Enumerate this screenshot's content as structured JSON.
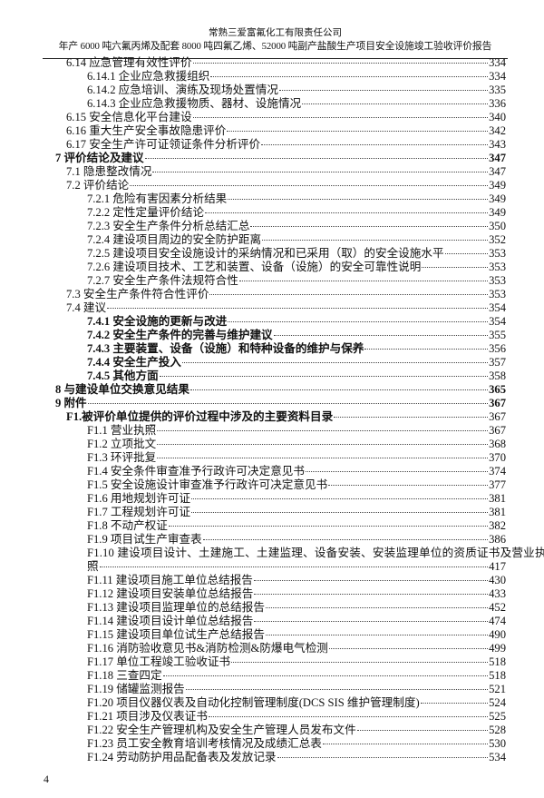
{
  "header": {
    "company": "常熟三爱富氟化工有限责任公司",
    "report_title": "年产 6000 吨六氟丙烯及配套 8000 吨四氟乙烯、52000 吨副产盐酸生产项目安全设施竣工验收评价报告"
  },
  "toc": [
    {
      "level": 1,
      "title": "6.14 应急管理有效性评价",
      "page": "334"
    },
    {
      "level": 2,
      "title": "6.14.1 企业应急救援组织",
      "page": "334"
    },
    {
      "level": 2,
      "title": "6.14.2 应急培训、演练及现场处置情况",
      "page": "335"
    },
    {
      "level": 2,
      "title": "6.14.3 企业应急救援物质、器材、设施情况",
      "page": "336"
    },
    {
      "level": 1,
      "title": "6.15 安全信息化平台建设",
      "page": "340"
    },
    {
      "level": 1,
      "title": "6.16 重大生产安全事故隐患评价",
      "page": "342"
    },
    {
      "level": 1,
      "title": "6.17 安全生产许可证领证条件分析评价",
      "page": "343"
    },
    {
      "level": 0,
      "title": "7 评价结论及建议",
      "page": "347"
    },
    {
      "level": 1,
      "title": "7.1 隐患整改情况",
      "page": "347"
    },
    {
      "level": 1,
      "title": "7.2 评价结论",
      "page": "349"
    },
    {
      "level": 2,
      "title": "7.2.1 危险有害因素分析结果",
      "page": "349"
    },
    {
      "level": 2,
      "title": "7.2.2 定性定量评价结论",
      "page": "349"
    },
    {
      "level": 2,
      "title": "7.2.3 安全生产条件分析总结汇总",
      "page": "350"
    },
    {
      "level": 2,
      "title": "7.2.4 建设项目周边的安全防护距离",
      "page": "352"
    },
    {
      "level": 2,
      "title": "7.2.5 建设项目安全设施设计的采纳情况和已采用（取）的安全设施水平",
      "page": "353"
    },
    {
      "level": 2,
      "title": "7.2.6 建设项目技术、工艺和装置、设备（设施）的安全可靠性说明",
      "page": "353"
    },
    {
      "level": 2,
      "title": "7.2.7 安全生产条件法规符合性",
      "page": "353"
    },
    {
      "level": 1,
      "title": "7.3 安全生产条件符合性评价",
      "page": "353"
    },
    {
      "level": 1,
      "title": "7.4 建议",
      "page": "354"
    },
    {
      "level": 2,
      "bold": true,
      "title": "7.4.1 安全设施的更新与改进",
      "page": "354"
    },
    {
      "level": 2,
      "bold": true,
      "title": "7.4.2 安全生产条件的完善与维护建议",
      "page": "355"
    },
    {
      "level": 2,
      "bold": true,
      "title": "7.4.3 主要装置、设备（设施）和特种设备的维护与保养",
      "page": "356"
    },
    {
      "level": 2,
      "bold": true,
      "title": "7.4.4 安全生产投入",
      "page": "357"
    },
    {
      "level": 2,
      "bold": true,
      "title": "7.4.5 其他方面",
      "page": "358"
    },
    {
      "level": 0,
      "title": "8 与建设单位交换意见结果",
      "page": "365"
    },
    {
      "level": 0,
      "title": "9 附件",
      "page": "367"
    },
    {
      "level": 1,
      "bold": true,
      "title": "F1.被评价单位提供的评价过程中涉及的主要资料目录",
      "page": "367"
    },
    {
      "level": 2,
      "title": "F1.1 营业执照",
      "page": "367"
    },
    {
      "level": 2,
      "title": "F1.2 立项批文",
      "page": "368"
    },
    {
      "level": 2,
      "title": "F1.3 环评批复",
      "page": "370"
    },
    {
      "level": 2,
      "title": "F1.4 安全条件审查准予行政许可决定意见书",
      "page": "374"
    },
    {
      "level": 2,
      "title": "F1.5 安全设施设计审查准予行政许可决定意见书",
      "page": "377"
    },
    {
      "level": 2,
      "title": "F1.6 用地规划许可证",
      "page": "381"
    },
    {
      "level": 2,
      "title": "F1.7 工程规划许可证",
      "page": "381"
    },
    {
      "level": 2,
      "title": "F1.8 不动产权证",
      "page": "382"
    },
    {
      "level": 2,
      "title": "F1.9 项目试生产审查表",
      "page": "386"
    },
    {
      "level": 2,
      "title": "F1.10 建设项目设计、土建施工、土建监理、设备安装、安装监理单位的资质证书及营业执",
      "title_cont": "照",
      "page": "417"
    },
    {
      "level": 2,
      "title": "F1.11 建设项目施工单位总结报告",
      "page": "430"
    },
    {
      "level": 2,
      "title": "F1.12 建设项目安装单位总结报告",
      "page": "433"
    },
    {
      "level": 2,
      "title": "F1.13 建设项目监理单位的总结报告",
      "page": "452"
    },
    {
      "level": 2,
      "title": "F1.14 建设项目设计单位总结报告",
      "page": "474"
    },
    {
      "level": 2,
      "title": "F1.15 建设项目单位试生产总结报告",
      "page": "490"
    },
    {
      "level": 2,
      "title": "F1.16 消防验收意见书&消防检测&防爆电气检测",
      "page": "499"
    },
    {
      "level": 2,
      "title": "F1.17 单位工程竣工验收证书",
      "page": "518"
    },
    {
      "level": 2,
      "title": " F1.18 三查四定",
      "page": "518"
    },
    {
      "level": 2,
      "title": "F1.19 储罐监测报告",
      "page": "521"
    },
    {
      "level": 2,
      "title": "F1.20 项目仪器仪表及自动化控制管理制度(DCS SIS 维护管理制度)",
      "page": "524"
    },
    {
      "level": 2,
      "title": "F1.21 项目涉及仪表证书",
      "page": "525"
    },
    {
      "level": 2,
      "title": "F1.22 安全生产管理机构及安全生产管理人员发布文件",
      "page": "528"
    },
    {
      "level": 2,
      "title": "F1.23 员工安全教育培训考核情况及成绩汇总表",
      "page": "530"
    },
    {
      "level": 2,
      "title": "F1.24 劳动防护用品配备表及发放记录",
      "page": "534"
    }
  ],
  "footer": {
    "page_number": "4"
  }
}
